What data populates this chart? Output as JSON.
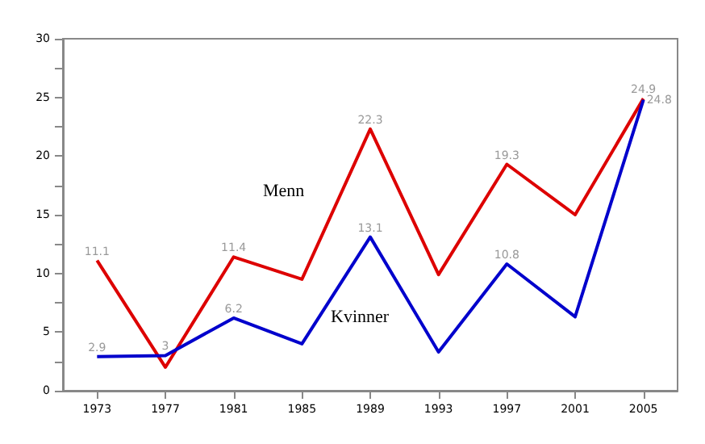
{
  "chart_data": {
    "type": "line",
    "categories": [
      "1973",
      "1977",
      "1981",
      "1985",
      "1989",
      "1993",
      "1997",
      "2001",
      "2005"
    ],
    "series": [
      {
        "color": "#dd0000",
        "values": [
          11.1,
          2.0,
          11.4,
          9.5,
          22.3,
          9.9,
          19.3,
          15.0,
          24.9
        ],
        "value_labels": [
          "11.1",
          null,
          "11.4",
          null,
          "22.3",
          null,
          "19.3",
          null,
          "24.9"
        ]
      },
      {
        "color": "#0000cc",
        "values": [
          2.9,
          3.0,
          6.2,
          4.0,
          13.1,
          3.3,
          10.8,
          6.3,
          24.8
        ],
        "value_labels": [
          "2.9",
          "3",
          "6.2",
          null,
          "13.1",
          null,
          "10.8",
          null,
          "24.8"
        ]
      }
    ],
    "annotations": [
      "Menn",
      "Kvinner"
    ],
    "ylim": [
      0,
      30
    ],
    "yticks": [
      0,
      {
        "value": 2.5,
        "label": null
      },
      5,
      {
        "value": 7.5,
        "label": null
      },
      10,
      {
        "value": 12.5,
        "label": null
      },
      15,
      {
        "value": 17.5,
        "label": null
      },
      20,
      {
        "value": 22.5,
        "label": null
      },
      25,
      {
        "value": 27.5,
        "label": null
      },
      30
    ],
    "grid": false,
    "marker": "none",
    "line_style": "solid"
  }
}
